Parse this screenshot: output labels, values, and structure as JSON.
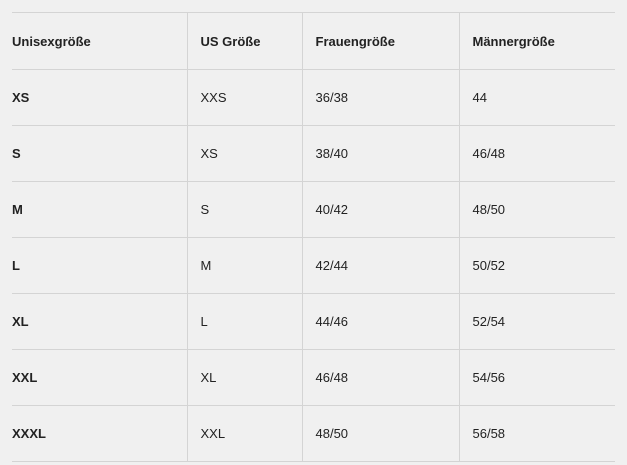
{
  "headers": [
    "Unisexgröße",
    "US Größe",
    "Frauengröße",
    "Männergröße"
  ],
  "rows": [
    [
      "XS",
      "XXS",
      "36/38",
      "44"
    ],
    [
      "S",
      "XS",
      "38/40",
      "46/48"
    ],
    [
      "M",
      "S",
      "40/42",
      "48/50"
    ],
    [
      "L",
      "M",
      "42/44",
      "50/52"
    ],
    [
      "XL",
      "L",
      "44/46",
      "52/54"
    ],
    [
      "XXL",
      "XL",
      "46/48",
      "54/56"
    ],
    [
      "XXXL",
      "XXL",
      "48/50",
      "56/58"
    ]
  ]
}
